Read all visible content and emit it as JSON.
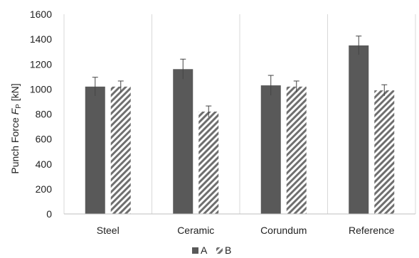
{
  "chart_data": {
    "type": "bar",
    "categories": [
      "Steel",
      "Ceramic",
      "Corundum",
      "Reference"
    ],
    "series": [
      {
        "name": "A",
        "values": [
          1020,
          1160,
          1030,
          1350
        ],
        "errors": [
          75,
          80,
          80,
          75
        ],
        "fill": "solid",
        "color": "#595959"
      },
      {
        "name": "B",
        "values": [
          1020,
          820,
          1020,
          990
        ],
        "errors": [
          45,
          45,
          45,
          45
        ],
        "fill": "diagonal-hatch",
        "color": "#6f6f6f"
      }
    ],
    "ylabel": {
      "prefix": "Punch Force ",
      "symbol": "F",
      "subscript": "P",
      "unit": " [kN]"
    },
    "ylim": [
      0,
      1600
    ],
    "yticks": [
      0,
      200,
      400,
      600,
      800,
      1000,
      1200,
      1400,
      1600
    ],
    "grid": "vertical category separators",
    "legend": "bottom-center"
  }
}
